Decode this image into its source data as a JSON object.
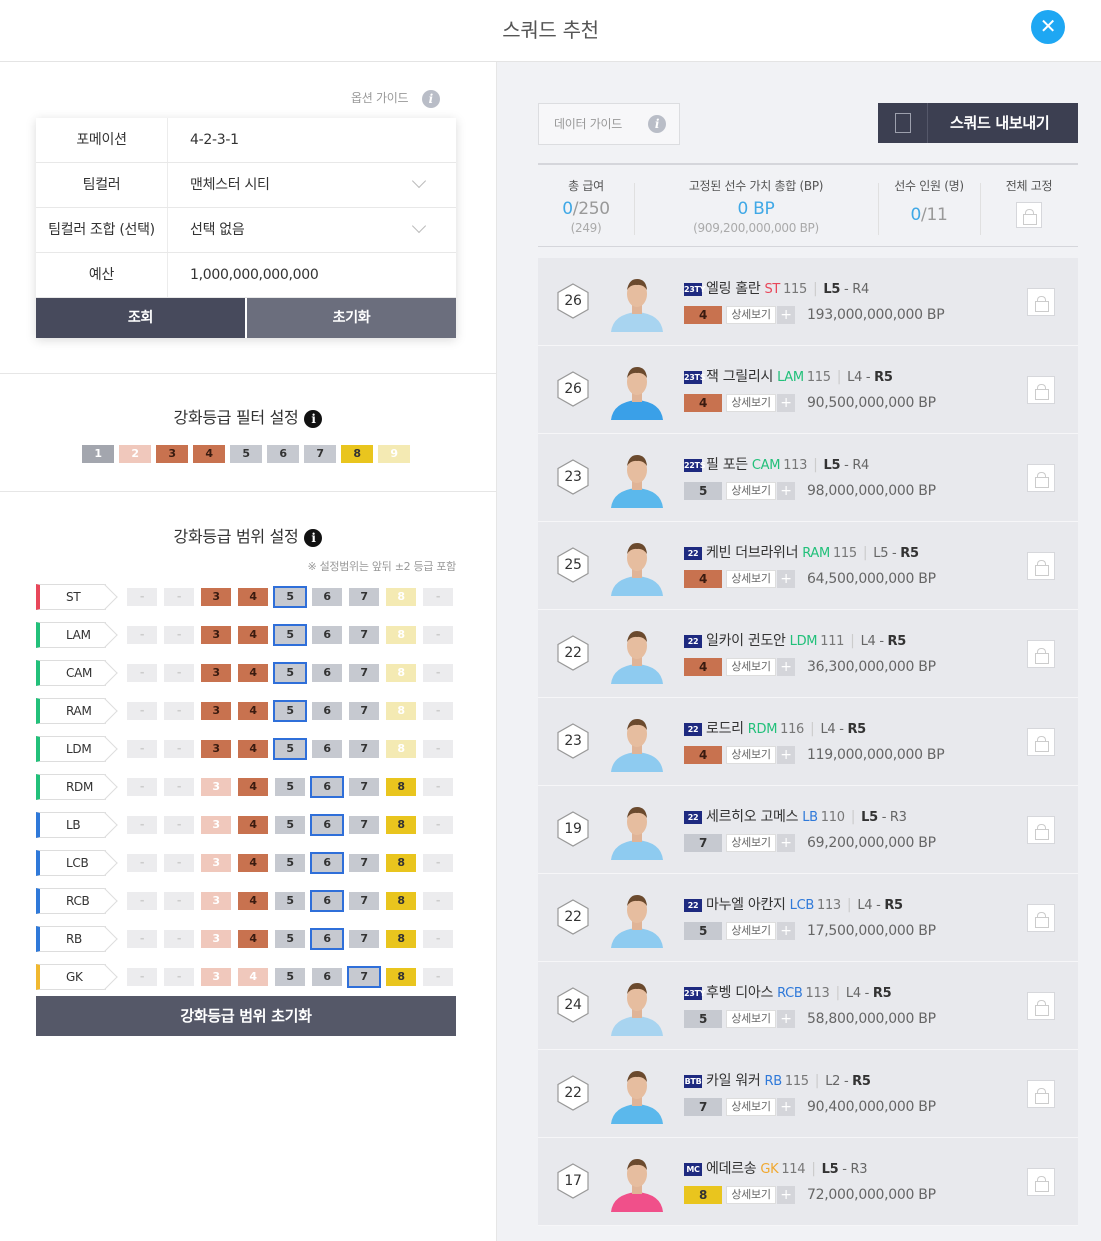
{
  "header": {
    "title": "스쿼드 추천",
    "close_icon": "close-icon"
  },
  "left": {
    "option_guide": "옵션 가이드",
    "form": [
      {
        "label": "포메이션",
        "value": "4-2-3-1",
        "dropdown": false
      },
      {
        "label": "팀컬러",
        "value": "맨체스터 시티",
        "dropdown": true
      },
      {
        "label": "팀컬러 조합 (선택)",
        "value": "선택 없음",
        "dropdown": true
      },
      {
        "label": "예산",
        "value": "1,000,000,000,000",
        "dropdown": false
      }
    ],
    "search_label": "조회",
    "reset_label": "초기화",
    "filter_title": "강화등급 필터 설정",
    "filter_chips": [
      "1",
      "2",
      "3",
      "4",
      "5",
      "6",
      "7",
      "8",
      "9"
    ],
    "range_title": "강화등급 범위 설정",
    "range_note": "※ 설정범위는 앞뒤 ±2 등급 포함",
    "range_reset_label": "강화등급 범위 초기화",
    "positions": [
      {
        "pos": "ST",
        "color": "#e8475a",
        "cells": [
          "-",
          "-",
          "3",
          "4",
          "5",
          "6",
          "7",
          "8",
          "-"
        ],
        "sel": 4,
        "style": [
          "x",
          "x",
          "b",
          "b",
          "s",
          "s",
          "s",
          "gl",
          "x"
        ]
      },
      {
        "pos": "LAM",
        "color": "#22c07a",
        "cells": [
          "-",
          "-",
          "3",
          "4",
          "5",
          "6",
          "7",
          "8",
          "-"
        ],
        "sel": 4,
        "style": [
          "x",
          "x",
          "b",
          "b",
          "s",
          "s",
          "s",
          "gl",
          "x"
        ]
      },
      {
        "pos": "CAM",
        "color": "#22c07a",
        "cells": [
          "-",
          "-",
          "3",
          "4",
          "5",
          "6",
          "7",
          "8",
          "-"
        ],
        "sel": 4,
        "style": [
          "x",
          "x",
          "b",
          "b",
          "s",
          "s",
          "s",
          "gl",
          "x"
        ]
      },
      {
        "pos": "RAM",
        "color": "#22c07a",
        "cells": [
          "-",
          "-",
          "3",
          "4",
          "5",
          "6",
          "7",
          "8",
          "-"
        ],
        "sel": 4,
        "style": [
          "x",
          "x",
          "b",
          "b",
          "s",
          "s",
          "s",
          "gl",
          "x"
        ]
      },
      {
        "pos": "LDM",
        "color": "#22c07a",
        "cells": [
          "-",
          "-",
          "3",
          "4",
          "5",
          "6",
          "7",
          "8",
          "-"
        ],
        "sel": 4,
        "style": [
          "x",
          "x",
          "b",
          "b",
          "s",
          "s",
          "s",
          "gl",
          "x"
        ]
      },
      {
        "pos": "RDM",
        "color": "#22c07a",
        "cells": [
          "-",
          "-",
          "3",
          "4",
          "5",
          "6",
          "7",
          "8",
          "-"
        ],
        "sel": 5,
        "style": [
          "x",
          "x",
          "bl",
          "b",
          "s",
          "s",
          "s",
          "g",
          "x"
        ]
      },
      {
        "pos": "LB",
        "color": "#2f79d9",
        "cells": [
          "-",
          "-",
          "3",
          "4",
          "5",
          "6",
          "7",
          "8",
          "-"
        ],
        "sel": 5,
        "style": [
          "x",
          "x",
          "bl",
          "b",
          "s",
          "s",
          "s",
          "g",
          "x"
        ]
      },
      {
        "pos": "LCB",
        "color": "#2f79d9",
        "cells": [
          "-",
          "-",
          "3",
          "4",
          "5",
          "6",
          "7",
          "8",
          "-"
        ],
        "sel": 5,
        "style": [
          "x",
          "x",
          "bl",
          "b",
          "s",
          "s",
          "s",
          "g",
          "x"
        ]
      },
      {
        "pos": "RCB",
        "color": "#2f79d9",
        "cells": [
          "-",
          "-",
          "3",
          "4",
          "5",
          "6",
          "7",
          "8",
          "-"
        ],
        "sel": 5,
        "style": [
          "x",
          "x",
          "bl",
          "b",
          "s",
          "s",
          "s",
          "g",
          "x"
        ]
      },
      {
        "pos": "RB",
        "color": "#2f79d9",
        "cells": [
          "-",
          "-",
          "3",
          "4",
          "5",
          "6",
          "7",
          "8",
          "-"
        ],
        "sel": 5,
        "style": [
          "x",
          "x",
          "bl",
          "b",
          "s",
          "s",
          "s",
          "g",
          "x"
        ]
      },
      {
        "pos": "GK",
        "color": "#f0b830",
        "cells": [
          "-",
          "-",
          "3",
          "4",
          "5",
          "6",
          "7",
          "8",
          "-"
        ],
        "sel": 6,
        "style": [
          "x",
          "x",
          "bl",
          "bl",
          "s",
          "s",
          "s",
          "g",
          "x"
        ]
      }
    ]
  },
  "right": {
    "data_guide": "데이터 가이드",
    "export_label": "스쿼드 내보내기",
    "summary": {
      "salary_label": "총 급여",
      "salary_cur": "0",
      "salary_max": "/250",
      "salary_sub": "(249)",
      "fixed_label": "고정된 선수 가치 총합 (BP)",
      "fixed_value": "0 BP",
      "fixed_sub": "(909,200,000,000 BP)",
      "count_label": "선수 인원 (명)",
      "count_cur": "0",
      "count_max": "/11",
      "lock_all_label": "전체 고정"
    },
    "players": [
      {
        "salary": "26",
        "season": "23TY",
        "name": "엘링 홀란",
        "pos": "ST",
        "pos_color": "#e8475a",
        "ovr": "115",
        "l": "L5",
        "r": "R4",
        "l_bold": true,
        "grade": "4",
        "grade_style": "b",
        "detail": "상세보기",
        "price": "193,000,000,000 BP",
        "kit": "#a8d4f0"
      },
      {
        "salary": "26",
        "season": "23TS",
        "name": "잭 그릴리시",
        "pos": "LAM",
        "pos_color": "#22c07a",
        "ovr": "115",
        "l": "L4",
        "r": "R5",
        "l_bold": false,
        "grade": "4",
        "grade_style": "b",
        "detail": "상세보기",
        "price": "90,500,000,000 BP",
        "kit": "#3aa0e8"
      },
      {
        "salary": "23",
        "season": "22TS",
        "name": "필 포든",
        "pos": "CAM",
        "pos_color": "#22c07a",
        "ovr": "113",
        "l": "L5",
        "r": "R4",
        "l_bold": true,
        "grade": "5",
        "grade_style": "s",
        "detail": "상세보기",
        "price": "98,000,000,000 BP",
        "kit": "#5bb8ec"
      },
      {
        "salary": "25",
        "season": "22",
        "name": "케빈 더브라위너",
        "pos": "RAM",
        "pos_color": "#22c07a",
        "ovr": "115",
        "l": "L5",
        "r": "R5",
        "l_bold": false,
        "grade": "4",
        "grade_style": "b",
        "detail": "상세보기",
        "price": "64,500,000,000 BP",
        "kit": "#8ecbf0"
      },
      {
        "salary": "22",
        "season": "22",
        "name": "일카이 귄도안",
        "pos": "LDM",
        "pos_color": "#22c07a",
        "ovr": "111",
        "l": "L4",
        "r": "R5",
        "l_bold": false,
        "grade": "4",
        "grade_style": "b",
        "detail": "상세보기",
        "price": "36,300,000,000 BP",
        "kit": "#8ecbf0"
      },
      {
        "salary": "23",
        "season": "22",
        "name": "로드리",
        "pos": "RDM",
        "pos_color": "#22c07a",
        "ovr": "116",
        "l": "L4",
        "r": "R5",
        "l_bold": false,
        "grade": "4",
        "grade_style": "b",
        "detail": "상세보기",
        "price": "119,000,000,000 BP",
        "kit": "#8ecbf0"
      },
      {
        "salary": "19",
        "season": "22",
        "name": "세르히오 고메스",
        "pos": "LB",
        "pos_color": "#2f79d9",
        "ovr": "110",
        "l": "L5",
        "r": "R3",
        "l_bold": true,
        "grade": "7",
        "grade_style": "s",
        "detail": "상세보기",
        "price": "69,200,000,000 BP",
        "kit": "#8ecbf0"
      },
      {
        "salary": "22",
        "season": "22",
        "name": "마누엘 아칸지",
        "pos": "LCB",
        "pos_color": "#2f79d9",
        "ovr": "113",
        "l": "L4",
        "r": "R5",
        "l_bold": false,
        "grade": "5",
        "grade_style": "s",
        "detail": "상세보기",
        "price": "17,500,000,000 BP",
        "kit": "#8ecbf0"
      },
      {
        "salary": "24",
        "season": "23TY",
        "name": "후벵 디아스",
        "pos": "RCB",
        "pos_color": "#2f79d9",
        "ovr": "113",
        "l": "L4",
        "r": "R5",
        "l_bold": false,
        "grade": "5",
        "grade_style": "s",
        "detail": "상세보기",
        "price": "58,800,000,000 BP",
        "kit": "#a8d4f0"
      },
      {
        "salary": "22",
        "season": "BTB",
        "name": "카일 워커",
        "pos": "RB",
        "pos_color": "#2f79d9",
        "ovr": "115",
        "l": "L2",
        "r": "R5",
        "l_bold": false,
        "grade": "7",
        "grade_style": "s",
        "detail": "상세보기",
        "price": "90,400,000,000 BP",
        "kit": "#5bb8ec"
      },
      {
        "salary": "17",
        "season": "MC",
        "name": "에데르송",
        "pos": "GK",
        "pos_color": "#f0a830",
        "ovr": "114",
        "l": "L5",
        "r": "R3",
        "l_bold": true,
        "grade": "8",
        "grade_style": "g",
        "detail": "상세보기",
        "price": "72,000,000,000 BP",
        "kit": "#f0508a"
      }
    ]
  }
}
